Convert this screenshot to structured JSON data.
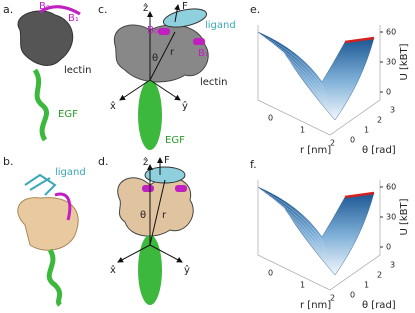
{
  "panels": {
    "a": {
      "label": "a.",
      "texts": [
        "B₀",
        "B₁",
        "lectin",
        "EGF"
      ]
    },
    "b": {
      "label": "b.",
      "texts": [
        "ligand"
      ]
    },
    "c": {
      "label": "c.",
      "texts": [
        "ẑ",
        "F",
        "ligand",
        "B₀",
        "B₁",
        "θ",
        "r",
        "x̂",
        "ŷ",
        "lectin",
        "EGF"
      ]
    },
    "d": {
      "label": "d.",
      "texts": [
        "ẑ",
        "F",
        "θ",
        "r",
        "x̂",
        "ŷ"
      ]
    },
    "e": {
      "label": "e.",
      "r_label": "r [nm]",
      "theta_label": "θ [rad]",
      "u_label": "U [kBT]",
      "r_ticks": [
        "0",
        "1",
        "2"
      ],
      "theta_ticks": [
        "0",
        "1",
        "2",
        "3"
      ],
      "u_ticks": [
        "0",
        "30",
        "60"
      ]
    },
    "f": {
      "label": "f.",
      "r_label": "r [nm]",
      "theta_label": "θ [rad]",
      "u_label": "U [kBT]",
      "r_ticks": [
        "0",
        "1",
        "2"
      ],
      "theta_ticks": [
        "0",
        "1",
        "2",
        "3"
      ],
      "u_ticks": [
        "0",
        "30",
        "60"
      ]
    }
  }
}
